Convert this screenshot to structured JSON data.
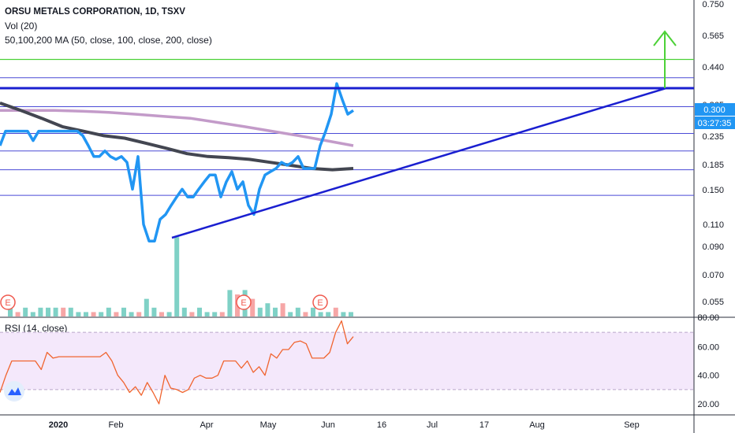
{
  "header": {
    "title": "ORSU METALS CORPORATION, 1D, TSXV",
    "indicator_vol": "Vol (20)",
    "indicator_ma": "50,100,200 MA (50, close, 100, close, 200, close)",
    "indicator_rsi": "RSI (14, close)",
    "price_badge": "0.300",
    "countdown_badge": "03:27:35"
  },
  "colors": {
    "price_line": "#2196f3",
    "ma_short": "#434651",
    "ma_long": "#c39bc9",
    "trendline": "#1a1fd0",
    "level_line": "#4a4ad6",
    "target_line": "#4cd137",
    "rsi_line": "#f0642f",
    "rsi_band": "#f4e8fb",
    "vol_up": "#7fd1c6",
    "vol_down": "#f6a6a6",
    "event_marker": "#f05a4f"
  },
  "icons": [
    "tradingview-logo-icon",
    "earnings-marker-icon",
    "target-arrow-icon"
  ],
  "chart_data": {
    "type": "line",
    "log_scale": true,
    "price_axis_ticks": [
      "0.750",
      "0.565",
      "0.440",
      "0.365",
      "0.300",
      "0.235",
      "0.185",
      "0.150",
      "0.110",
      "0.090",
      "0.070",
      "0.055"
    ],
    "rsi_axis_ticks": [
      "80.00",
      "60.00",
      "40.00",
      "20.00"
    ],
    "x_tick_labels": [
      "2020",
      "Feb",
      "Apr",
      "May",
      "Jun",
      "16",
      "Jul",
      "17",
      "Aug",
      "Sep"
    ],
    "earnings_markers": [
      "E",
      "E",
      "E"
    ],
    "horizontal_levels": [
      0.47,
      0.4,
      0.365,
      0.31,
      0.245,
      0.21,
      0.178,
      0.142
    ],
    "last_price": 0.3,
    "price_series": [
      0.22,
      0.25,
      0.25,
      0.25,
      0.25,
      0.25,
      0.23,
      0.25,
      0.25,
      0.25,
      0.25,
      0.25,
      0.25,
      0.25,
      0.25,
      0.24,
      0.22,
      0.2,
      0.2,
      0.21,
      0.2,
      0.195,
      0.2,
      0.19,
      0.15,
      0.2,
      0.11,
      0.095,
      0.095,
      0.115,
      0.12,
      0.13,
      0.14,
      0.15,
      0.14,
      0.14,
      0.15,
      0.16,
      0.17,
      0.17,
      0.14,
      0.16,
      0.175,
      0.15,
      0.16,
      0.13,
      0.12,
      0.15,
      0.17,
      0.175,
      0.18,
      0.19,
      0.185,
      0.19,
      0.2,
      0.18,
      0.18,
      0.18,
      0.22,
      0.25,
      0.29,
      0.38,
      0.33,
      0.29,
      0.3
    ],
    "ma50_series": [
      0.32,
      0.3,
      0.28,
      0.26,
      0.25,
      0.24,
      0.235,
      0.225,
      0.215,
      0.205,
      0.2,
      0.198,
      0.195,
      0.19,
      0.185,
      0.18,
      0.178,
      0.18
    ],
    "ma200_series": [
      0.3,
      0.3,
      0.3,
      0.298,
      0.295,
      0.29,
      0.285,
      0.28,
      0.27,
      0.26,
      0.25,
      0.24,
      0.23,
      0.22
    ],
    "rsi_series": [
      28,
      40,
      50,
      50,
      50,
      50,
      50,
      44,
      56,
      52,
      53,
      53,
      53,
      53,
      53,
      53,
      53,
      53,
      56,
      50,
      40,
      35,
      28,
      32,
      26,
      35,
      28,
      20,
      40,
      31,
      30,
      28,
      30,
      38,
      40,
      38,
      38,
      40,
      50,
      50,
      50,
      45,
      50,
      42,
      46,
      40,
      55,
      52,
      58,
      58,
      63,
      64,
      62,
      52,
      52,
      52,
      56,
      70,
      78,
      62,
      67
    ],
    "volume_series": [
      4,
      1,
      2,
      1,
      2,
      2,
      2,
      2,
      2,
      1,
      1,
      1,
      1,
      2,
      1,
      2,
      1,
      1,
      4,
      2,
      1,
      1,
      18,
      2,
      1,
      2,
      1,
      1,
      1,
      6,
      5,
      6,
      4,
      2,
      3,
      2,
      3,
      1,
      2,
      1,
      2,
      1,
      1,
      2,
      1,
      1
    ],
    "volume_up_down": [
      "u",
      "d",
      "u",
      "u",
      "u",
      "u",
      "u",
      "d",
      "u",
      "u",
      "u",
      "d",
      "u",
      "u",
      "d",
      "u",
      "u",
      "d",
      "u",
      "u",
      "d",
      "u",
      "u",
      "u",
      "d",
      "u",
      "u",
      "u",
      "d",
      "u",
      "d",
      "u",
      "d",
      "u",
      "u",
      "u",
      "d",
      "u",
      "u",
      "d",
      "u",
      "u",
      "u",
      "d",
      "u",
      "u"
    ],
    "target_price": 0.56
  }
}
